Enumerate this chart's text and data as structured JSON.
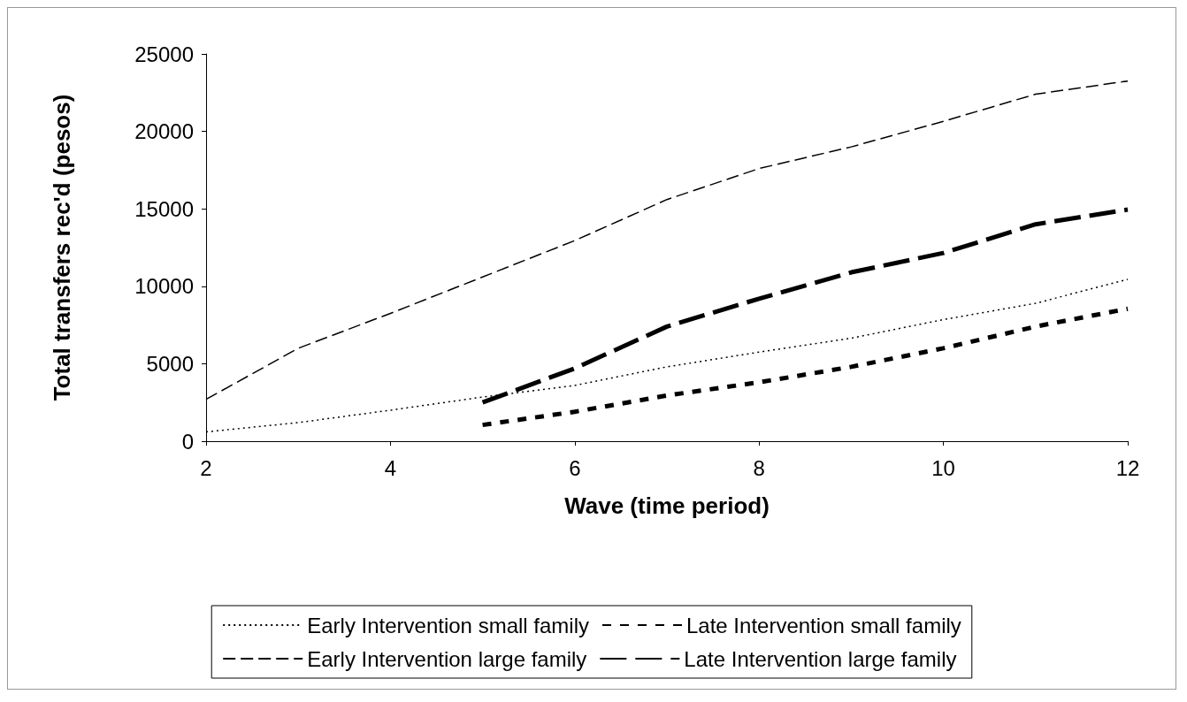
{
  "chart_data": {
    "type": "line",
    "xlabel": "Wave (time period)",
    "ylabel": "Total transfers rec'd (pesos)",
    "xlim": [
      2,
      12
    ],
    "xticks": [
      2,
      4,
      6,
      8,
      10,
      12
    ],
    "ylim": [
      0,
      25000
    ],
    "yticks": [
      0,
      5000,
      10000,
      15000,
      20000,
      25000
    ],
    "grid": false,
    "legend": "bottom",
    "marker": "none",
    "series": [
      {
        "name": "Early Intervention small family",
        "color": "#000000",
        "line_style": "dotted",
        "x": [
          2,
          3,
          4,
          5,
          6,
          7,
          8,
          9,
          10,
          11,
          12
        ],
        "values": [
          600,
          1200,
          2000,
          2850,
          3600,
          4800,
          5750,
          6650,
          7850,
          8900,
          10450
        ]
      },
      {
        "name": "Late Intervention small family",
        "color": "#000000",
        "line_style": "dashed",
        "x": [
          5,
          6,
          7,
          8,
          9,
          10,
          11,
          12
        ],
        "values": [
          1050,
          1900,
          2950,
          3800,
          4800,
          6000,
          7400,
          8550
        ]
      },
      {
        "name": "Early Intervention large family",
        "color": "#000000",
        "line_style": "dashed",
        "x": [
          2,
          3,
          4,
          5,
          6,
          7,
          8,
          9,
          10,
          11,
          12
        ],
        "values": [
          2700,
          6000,
          8250,
          10600,
          12950,
          15600,
          17600,
          19000,
          20650,
          22400,
          23250
        ]
      },
      {
        "name": "Late Intervention large family",
        "color": "#000000",
        "line_style": "dashed",
        "x": [
          5,
          6,
          7,
          8,
          9,
          10,
          11,
          12
        ],
        "values": [
          2500,
          4700,
          7400,
          9200,
          10900,
          12150,
          14000,
          14950
        ]
      }
    ]
  }
}
